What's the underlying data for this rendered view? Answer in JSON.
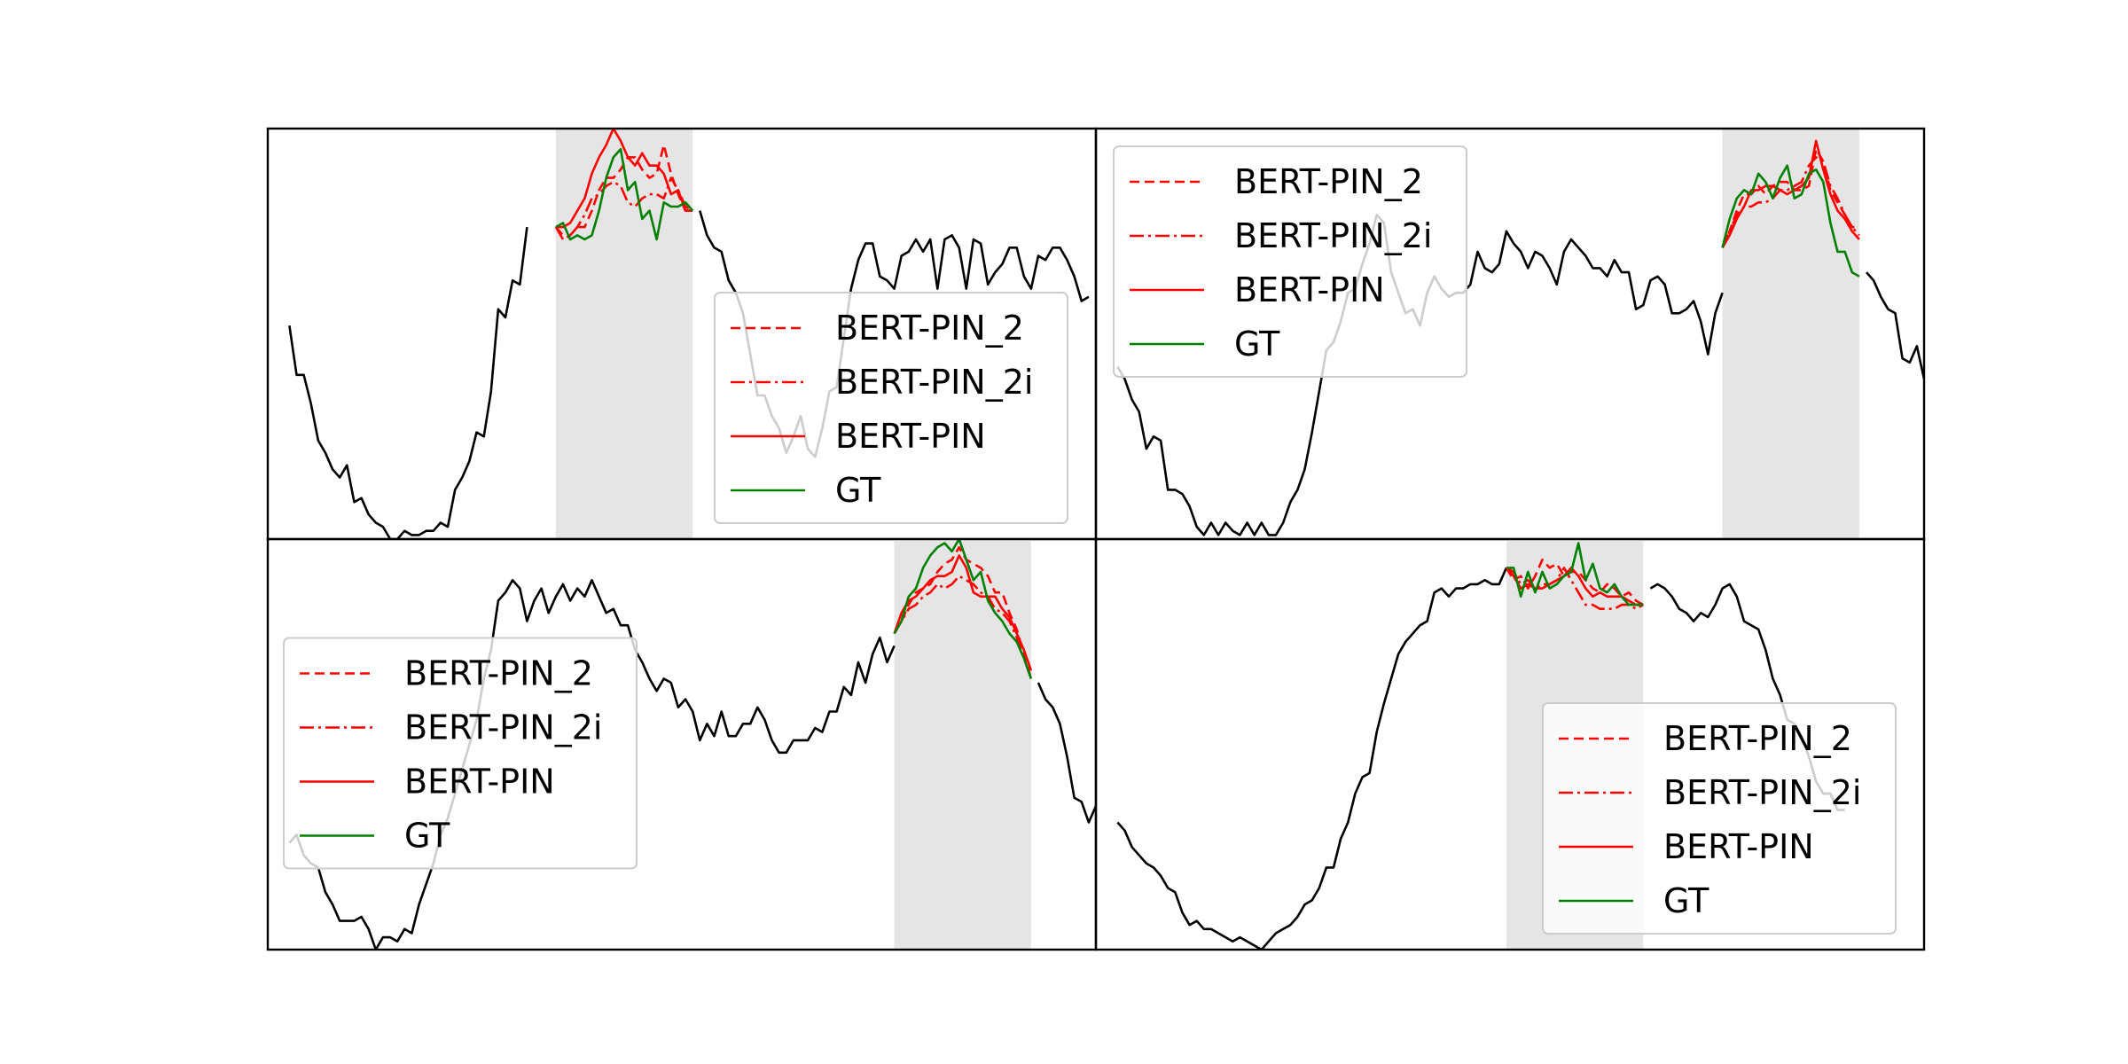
{
  "legend_labels": [
    "BERT-PIN_2",
    "BERT-PIN_2i",
    "BERT-PIN",
    "GT"
  ],
  "colors": {
    "context": "#000000",
    "bert_pin_2": "#ff0000",
    "bert_pin_2i": "#ff0000",
    "bert_pin": "#ff0000",
    "gt": "#008000",
    "mask_band": "#e5e5e5"
  },
  "chart_data": [
    {
      "type": "line",
      "xlim": [
        -3,
        112
      ],
      "ylim": [
        0.0,
        1.0
      ],
      "mask": [
        37,
        56
      ],
      "legend_loc": "lower-right",
      "context": [
        0.52,
        0.4,
        0.4,
        0.33,
        0.24,
        0.21,
        0.17,
        0.15,
        0.18,
        0.09,
        0.1,
        0.06,
        0.04,
        0.03,
        0.0,
        0.0,
        0.02,
        0.01,
        0.01,
        0.02,
        0.02,
        0.04,
        0.03,
        0.12,
        0.15,
        0.19,
        0.26,
        0.25,
        0.36,
        0.56,
        0.54,
        0.63,
        0.62,
        0.76,
        null,
        null,
        null,
        null,
        null,
        null,
        null,
        null,
        null,
        null,
        null,
        null,
        null,
        null,
        null,
        null,
        null,
        null,
        null,
        null,
        null,
        null,
        null,
        0.8,
        0.74,
        0.71,
        0.7,
        0.63,
        0.6,
        0.55,
        0.45,
        0.35,
        0.35,
        0.3,
        0.27,
        0.21,
        0.25,
        0.3,
        0.22,
        0.2,
        0.27,
        0.36,
        0.37,
        0.49,
        0.61,
        0.68,
        0.72,
        0.72,
        0.64,
        0.63,
        0.61,
        0.69,
        0.7,
        0.73,
        0.7,
        0.73,
        0.61,
        0.73,
        0.74,
        0.71,
        0.61,
        0.73,
        0.72,
        0.62,
        0.65,
        0.67,
        0.71,
        0.71,
        0.64,
        0.61,
        0.69,
        0.68,
        0.71,
        0.71,
        0.68,
        0.64,
        0.58,
        0.59
      ],
      "series": [
        {
          "name": "BERT-PIN_2",
          "values": [
            0.76,
            0.74,
            0.74,
            0.76,
            0.76,
            0.8,
            0.85,
            0.88,
            0.88,
            0.9,
            0.93,
            0.93,
            0.9,
            0.88,
            0.89,
            0.96,
            0.89,
            0.84,
            0.8,
            0.8
          ]
        },
        {
          "name": "BERT-PIN_2i",
          "values": [
            0.76,
            0.73,
            0.74,
            0.76,
            0.79,
            0.83,
            0.84,
            0.86,
            0.87,
            0.86,
            0.82,
            0.81,
            0.83,
            0.84,
            0.84,
            0.83,
            0.88,
            0.85,
            0.81,
            0.8
          ]
        },
        {
          "name": "BERT-PIN",
          "values": [
            0.76,
            0.76,
            0.77,
            0.8,
            0.83,
            0.89,
            0.93,
            0.96,
            1.0,
            0.97,
            0.93,
            0.91,
            0.94,
            0.91,
            0.91,
            0.89,
            0.84,
            0.85,
            0.8,
            0.8
          ]
        },
        {
          "name": "GT",
          "values": [
            0.76,
            0.77,
            0.73,
            0.74,
            0.73,
            0.74,
            0.8,
            0.88,
            0.93,
            0.95,
            0.85,
            0.87,
            0.78,
            0.8,
            0.73,
            0.82,
            0.81,
            0.81,
            0.82,
            0.8
          ]
        }
      ]
    },
    {
      "type": "line",
      "xlim": [
        -3,
        112
      ],
      "ylim": [
        0.0,
        1.0
      ],
      "mask": [
        84,
        103
      ],
      "legend_loc": "upper-left",
      "context": [
        0.42,
        0.39,
        0.34,
        0.31,
        0.22,
        0.25,
        0.24,
        0.12,
        0.12,
        0.11,
        0.08,
        0.03,
        0.01,
        0.04,
        0.01,
        0.04,
        0.02,
        0.01,
        0.04,
        0.01,
        0.04,
        0.01,
        0.01,
        0.04,
        0.09,
        0.12,
        0.17,
        0.26,
        0.36,
        0.46,
        0.48,
        0.53,
        0.6,
        0.61,
        0.67,
        0.72,
        0.79,
        0.77,
        0.65,
        0.6,
        0.55,
        0.56,
        0.52,
        0.6,
        0.64,
        0.61,
        0.59,
        0.6,
        0.6,
        0.62,
        0.7,
        0.66,
        0.65,
        0.67,
        0.75,
        0.72,
        0.7,
        0.66,
        0.7,
        0.69,
        0.66,
        0.62,
        0.7,
        0.73,
        0.71,
        0.69,
        0.66,
        0.66,
        0.64,
        0.68,
        0.65,
        0.65,
        0.56,
        0.57,
        0.63,
        0.64,
        0.62,
        0.55,
        0.55,
        0.56,
        0.58,
        0.53,
        0.45,
        0.55,
        0.6,
        null,
        null,
        null,
        null,
        null,
        null,
        null,
        null,
        null,
        null,
        null,
        null,
        null,
        null,
        null,
        null,
        null,
        null,
        null,
        0.65,
        0.63,
        0.59,
        0.56,
        0.55,
        0.44,
        0.43,
        0.47,
        0.39,
        0.43,
        0.43
      ],
      "series": [
        {
          "name": "BERT-PIN_2",
          "values": [
            0.71,
            0.75,
            0.8,
            0.84,
            0.84,
            0.86,
            0.84,
            0.86,
            0.87,
            0.87,
            0.85,
            0.85,
            0.86,
            0.95,
            0.92,
            0.85,
            0.82,
            0.79,
            0.76,
            0.76
          ]
        },
        {
          "name": "BERT-PIN_2i",
          "values": [
            0.71,
            0.75,
            0.79,
            0.81,
            0.81,
            0.82,
            0.82,
            0.83,
            0.85,
            0.85,
            0.86,
            0.87,
            0.91,
            0.93,
            0.92,
            0.86,
            0.83,
            0.79,
            0.76,
            0.74
          ]
        },
        {
          "name": "BERT-PIN",
          "values": [
            0.71,
            0.74,
            0.78,
            0.81,
            0.85,
            0.85,
            0.86,
            0.86,
            0.85,
            0.84,
            0.85,
            0.86,
            0.88,
            0.97,
            0.9,
            0.84,
            0.8,
            0.78,
            0.75,
            0.73
          ]
        },
        {
          "name": "GT",
          "values": [
            0.71,
            0.78,
            0.83,
            0.85,
            0.84,
            0.89,
            0.87,
            0.83,
            0.88,
            0.91,
            0.83,
            0.84,
            0.89,
            0.9,
            0.87,
            0.77,
            0.7,
            0.7,
            0.65,
            0.64
          ]
        }
      ]
    },
    {
      "type": "line",
      "xlim": [
        -3,
        112
      ],
      "ylim": [
        0.0,
        1.0
      ],
      "mask": [
        84,
        103
      ],
      "legend_loc": "center-left",
      "context": [
        0.26,
        0.28,
        0.23,
        0.21,
        0.2,
        0.14,
        0.11,
        0.07,
        0.07,
        0.07,
        0.08,
        0.05,
        0.0,
        0.03,
        0.03,
        0.02,
        0.05,
        0.04,
        0.11,
        0.16,
        0.21,
        0.28,
        0.32,
        0.38,
        0.44,
        0.5,
        0.56,
        0.66,
        0.73,
        0.85,
        0.87,
        0.9,
        0.88,
        0.8,
        0.85,
        0.88,
        0.82,
        0.86,
        0.89,
        0.85,
        0.88,
        0.86,
        0.9,
        0.86,
        0.82,
        0.83,
        0.79,
        0.79,
        0.73,
        0.7,
        0.66,
        0.63,
        0.66,
        0.65,
        0.59,
        0.61,
        0.58,
        0.51,
        0.55,
        0.52,
        0.58,
        0.52,
        0.52,
        0.55,
        0.55,
        0.59,
        0.56,
        0.51,
        0.48,
        0.48,
        0.51,
        0.51,
        0.51,
        0.54,
        0.53,
        0.58,
        0.58,
        0.64,
        0.62,
        0.7,
        0.65,
        0.72,
        0.76,
        0.7,
        0.74,
        null,
        null,
        null,
        null,
        null,
        null,
        null,
        null,
        null,
        null,
        null,
        null,
        null,
        null,
        null,
        null,
        null,
        null,
        null,
        0.65,
        0.61,
        0.59,
        0.55,
        0.47,
        0.37,
        0.36,
        0.31,
        0.35,
        0.33,
        0.35,
        0.33
      ],
      "series": [
        {
          "name": "BERT-PIN_2",
          "values": [
            0.77,
            0.8,
            0.84,
            0.87,
            0.88,
            0.89,
            0.92,
            0.94,
            0.95,
            0.98,
            0.95,
            0.94,
            0.93,
            0.91,
            0.87,
            0.87,
            0.82,
            0.78,
            0.72,
            0.66
          ]
        },
        {
          "name": "BERT-PIN_2i",
          "values": [
            0.77,
            0.8,
            0.83,
            0.84,
            0.86,
            0.87,
            0.89,
            0.88,
            0.89,
            0.91,
            0.9,
            0.89,
            0.87,
            0.86,
            0.83,
            0.82,
            0.8,
            0.76,
            0.71,
            0.66
          ]
        },
        {
          "name": "BERT-PIN",
          "values": [
            0.77,
            0.82,
            0.85,
            0.86,
            0.88,
            0.9,
            0.91,
            0.91,
            0.92,
            0.96,
            0.93,
            0.87,
            0.86,
            0.86,
            0.86,
            0.83,
            0.81,
            0.77,
            0.73,
            0.68
          ]
        },
        {
          "name": "GT",
          "values": [
            0.77,
            0.8,
            0.86,
            0.88,
            0.93,
            0.96,
            0.98,
            0.99,
            0.97,
            1.0,
            0.95,
            0.9,
            0.92,
            0.85,
            0.82,
            0.8,
            0.77,
            0.75,
            0.71,
            0.66
          ]
        }
      ]
    },
    {
      "type": "line",
      "xlim": [
        -3,
        112
      ],
      "ylim": [
        0.0,
        1.0
      ],
      "mask": [
        54,
        73
      ],
      "legend_loc": "lower-right",
      "context": [
        0.31,
        0.29,
        0.25,
        0.23,
        0.21,
        0.2,
        0.18,
        0.15,
        0.14,
        0.09,
        0.06,
        0.07,
        0.05,
        0.05,
        0.04,
        0.03,
        0.02,
        0.03,
        0.02,
        0.01,
        0.0,
        0.02,
        0.04,
        0.05,
        0.06,
        0.08,
        0.11,
        0.12,
        0.15,
        0.2,
        0.2,
        0.27,
        0.31,
        0.38,
        0.42,
        0.43,
        0.53,
        0.6,
        0.66,
        0.72,
        0.75,
        0.77,
        0.79,
        0.8,
        0.87,
        0.88,
        0.86,
        0.88,
        0.88,
        0.89,
        0.89,
        0.9,
        0.89,
        0.89,
        0.93,
        null,
        null,
        null,
        null,
        null,
        null,
        null,
        null,
        null,
        null,
        null,
        null,
        null,
        null,
        null,
        null,
        null,
        null,
        null,
        0.88,
        0.89,
        0.88,
        0.86,
        0.83,
        0.82,
        0.8,
        0.82,
        0.81,
        0.84,
        0.88,
        0.89,
        0.86,
        0.8,
        0.79,
        0.78,
        0.73,
        0.66,
        0.62,
        0.56,
        0.55,
        0.52,
        0.47,
        0.41,
        0.38,
        0.38,
        0.34,
        0.34
      ],
      "series": [
        {
          "name": "BERT-PIN_2",
          "values": [
            0.93,
            0.9,
            0.91,
            0.88,
            0.91,
            0.95,
            0.93,
            0.94,
            0.91,
            0.92,
            0.92,
            0.9,
            0.88,
            0.87,
            0.89,
            0.88,
            0.86,
            0.87,
            0.85,
            0.84
          ]
        },
        {
          "name": "BERT-PIN_2i",
          "values": [
            0.93,
            0.92,
            0.89,
            0.9,
            0.88,
            0.89,
            0.89,
            0.9,
            0.93,
            0.9,
            0.87,
            0.84,
            0.84,
            0.83,
            0.83,
            0.83,
            0.84,
            0.84,
            0.83,
            0.84
          ]
        },
        {
          "name": "BERT-PIN",
          "values": [
            0.93,
            0.91,
            0.88,
            0.89,
            0.88,
            0.88,
            0.89,
            0.9,
            0.91,
            0.93,
            0.91,
            0.88,
            0.86,
            0.87,
            0.86,
            0.86,
            0.86,
            0.85,
            0.84,
            0.84
          ]
        },
        {
          "name": "GT",
          "values": [
            0.93,
            0.93,
            0.86,
            0.92,
            0.87,
            0.92,
            0.88,
            0.89,
            0.91,
            0.92,
            0.99,
            0.9,
            0.94,
            0.88,
            0.87,
            0.89,
            0.86,
            0.84,
            0.84,
            0.84
          ]
        }
      ]
    }
  ]
}
